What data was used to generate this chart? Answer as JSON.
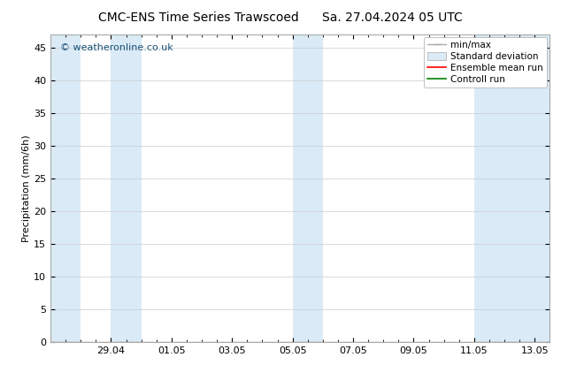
{
  "title_left": "CMC-ENS Time Series Trawscoed",
  "title_right": "Sa. 27.04.2024 05 UTC",
  "ylabel": "Precipitation (mm/6h)",
  "ylim": [
    0,
    47
  ],
  "yticks": [
    0,
    5,
    10,
    15,
    20,
    25,
    30,
    35,
    40,
    45
  ],
  "x_min": 0.0,
  "x_max": 16.5,
  "xtick_positions": [
    2,
    4,
    6,
    8,
    10,
    12,
    14,
    16
  ],
  "xtick_labels": [
    "29.04",
    "01.05",
    "03.05",
    "05.05",
    "07.05",
    "09.05",
    "11.05",
    "13.05"
  ],
  "shaded_bands": [
    [
      0.0,
      1.0
    ],
    [
      2.0,
      3.0
    ],
    [
      8.0,
      9.0
    ],
    [
      14.0,
      16.5
    ]
  ],
  "band_color": "#daeaf7",
  "watermark": "© weatheronline.co.uk",
  "watermark_color": "#1a5276",
  "legend_labels": [
    "min/max",
    "Standard deviation",
    "Ensemble mean run",
    "Controll run"
  ],
  "legend_colors": [
    "#999999",
    "#daeaf7",
    "red",
    "green"
  ],
  "background_color": "#ffffff",
  "spine_color": "#aaaaaa",
  "tick_fontsize": 8,
  "ylabel_fontsize": 8,
  "title_fontsize": 10
}
